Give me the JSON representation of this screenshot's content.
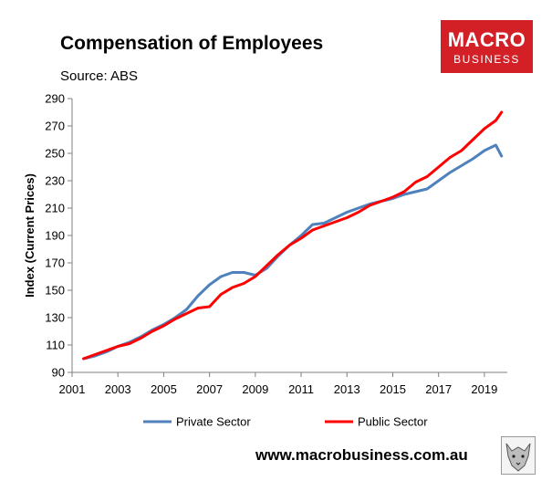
{
  "header": {
    "title": "Compensation of Employees",
    "source": "Source: ABS"
  },
  "logo": {
    "line1": "MACRO",
    "line2": "BUSINESS"
  },
  "footer": {
    "url": "www.macrobusiness.com.au",
    "wolf_icon": "wolf-head-icon"
  },
  "colors": {
    "private": "#4f81bd",
    "public": "#ff0000",
    "logo_bg": "#d32027"
  },
  "chart_data": {
    "type": "line",
    "title": "Compensation of Employees",
    "ylabel": "Index (Current Prices)",
    "xlabel": "",
    "ylim": [
      90,
      290
    ],
    "yticks": [
      90,
      110,
      130,
      150,
      170,
      190,
      210,
      230,
      250,
      270,
      290
    ],
    "xlim": [
      2001,
      2020
    ],
    "xticks": [
      2001,
      2003,
      2005,
      2007,
      2009,
      2011,
      2013,
      2015,
      2017,
      2019
    ],
    "grid": false,
    "legend": "bottom",
    "x": [
      2001.5,
      2002,
      2002.5,
      2003,
      2003.5,
      2004,
      2004.5,
      2005,
      2005.5,
      2006,
      2006.5,
      2007,
      2007.5,
      2008,
      2008.5,
      2009,
      2009.5,
      2010,
      2010.5,
      2011,
      2011.5,
      2012,
      2012.5,
      2013,
      2013.5,
      2014,
      2014.5,
      2015,
      2015.5,
      2016,
      2016.5,
      2017,
      2017.5,
      2018,
      2018.5,
      2019,
      2019.5,
      2019.75
    ],
    "series": [
      {
        "name": "Private Sector",
        "values": [
          100,
          102,
          105,
          109,
          112,
          116,
          121,
          125,
          130,
          136,
          146,
          154,
          160,
          163,
          163,
          161,
          166,
          175,
          183,
          190,
          198,
          199,
          203,
          207,
          210,
          213,
          215,
          217,
          220,
          222,
          224,
          230,
          236,
          241,
          246,
          252,
          256,
          248
        ]
      },
      {
        "name": "Public Sector",
        "values": [
          100,
          103,
          106,
          109,
          111,
          115,
          120,
          124,
          129,
          133,
          137,
          138,
          147,
          152,
          155,
          160,
          168,
          176,
          183,
          188,
          194,
          197,
          200,
          203,
          207,
          212,
          215,
          218,
          222,
          229,
          233,
          240,
          247,
          252,
          260,
          268,
          274,
          280
        ]
      }
    ]
  }
}
